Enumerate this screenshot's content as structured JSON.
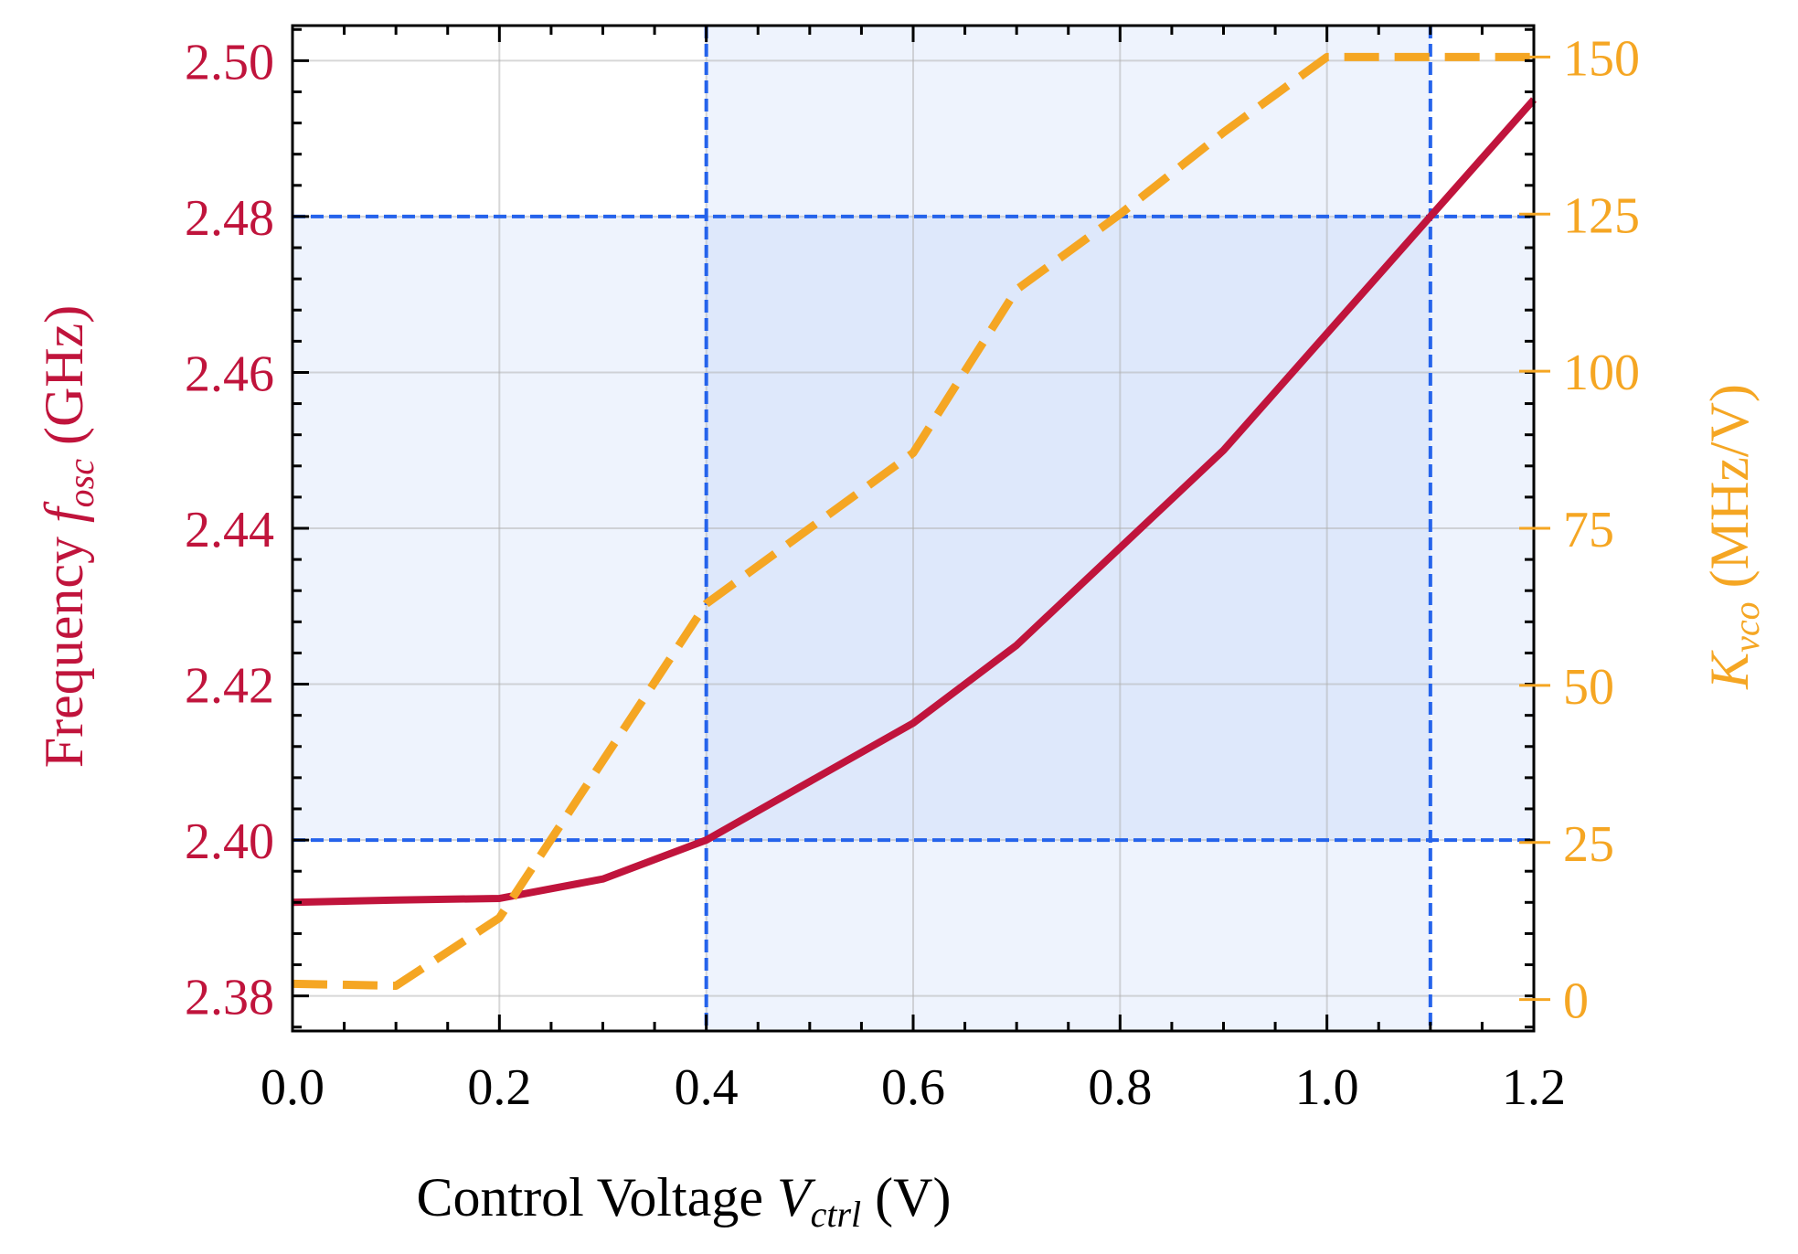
{
  "chart_data": {
    "type": "line",
    "xlabel": {
      "prefix": "Control Voltage ",
      "var": "V",
      "sub": "ctrl",
      "suffix": " (V)"
    },
    "ylabel_left": {
      "prefix": "Frequency ",
      "var": "f",
      "sub": "osc",
      "suffix": " (GHz)"
    },
    "ylabel_right": {
      "var": "K",
      "sub": "vco",
      "suffix": " (MHz/V)"
    },
    "xlim": [
      0.0,
      1.2
    ],
    "ylim_left": [
      2.3755,
      2.5045
    ],
    "ylim_right": [
      -5,
      155
    ],
    "x_ticks": [
      "0.0",
      "0.2",
      "0.4",
      "0.6",
      "0.8",
      "1.0",
      "1.2"
    ],
    "x_tick_values": [
      0.0,
      0.2,
      0.4,
      0.6,
      0.8,
      1.0,
      1.2
    ],
    "y_left_ticks": [
      "2.38",
      "2.40",
      "2.42",
      "2.44",
      "2.46",
      "2.48",
      "2.50"
    ],
    "y_left_tick_values": [
      2.38,
      2.4,
      2.42,
      2.44,
      2.46,
      2.48,
      2.5
    ],
    "y_right_ticks": [
      "0",
      "25",
      "50",
      "75",
      "100",
      "125",
      "150"
    ],
    "y_right_tick_values": [
      0,
      25,
      50,
      75,
      100,
      125,
      150
    ],
    "grid": true,
    "series": [
      {
        "axis": "left",
        "style": "solid",
        "color": "#c0143c",
        "x": [
          0.0,
          0.1,
          0.2,
          0.3,
          0.4,
          0.5,
          0.6,
          0.7,
          0.8,
          0.9,
          1.0,
          1.1,
          1.2
        ],
        "y": [
          2.392,
          2.3923,
          2.3925,
          2.395,
          2.4,
          2.4075,
          2.415,
          2.425,
          2.4375,
          2.45,
          2.465,
          2.48,
          2.495
        ]
      },
      {
        "axis": "right",
        "style": "dashed",
        "color": "#f5a623",
        "x": [
          0.0,
          0.1,
          0.2,
          0.3,
          0.4,
          0.5,
          0.6,
          0.7,
          0.8,
          0.9,
          1.0,
          1.1,
          1.2
        ],
        "y": [
          2.5,
          2.2,
          13,
          38,
          63,
          75,
          87,
          113,
          125,
          138,
          150,
          150,
          150
        ]
      }
    ],
    "bands": {
      "x_span": [
        0.4,
        1.1
      ],
      "y_span_left": [
        2.4,
        2.48
      ],
      "color": "#2563eb"
    },
    "colors": {
      "left_axis": "#c0143c",
      "right_axis": "#f5a623",
      "band_lines": "#2563eb"
    }
  }
}
